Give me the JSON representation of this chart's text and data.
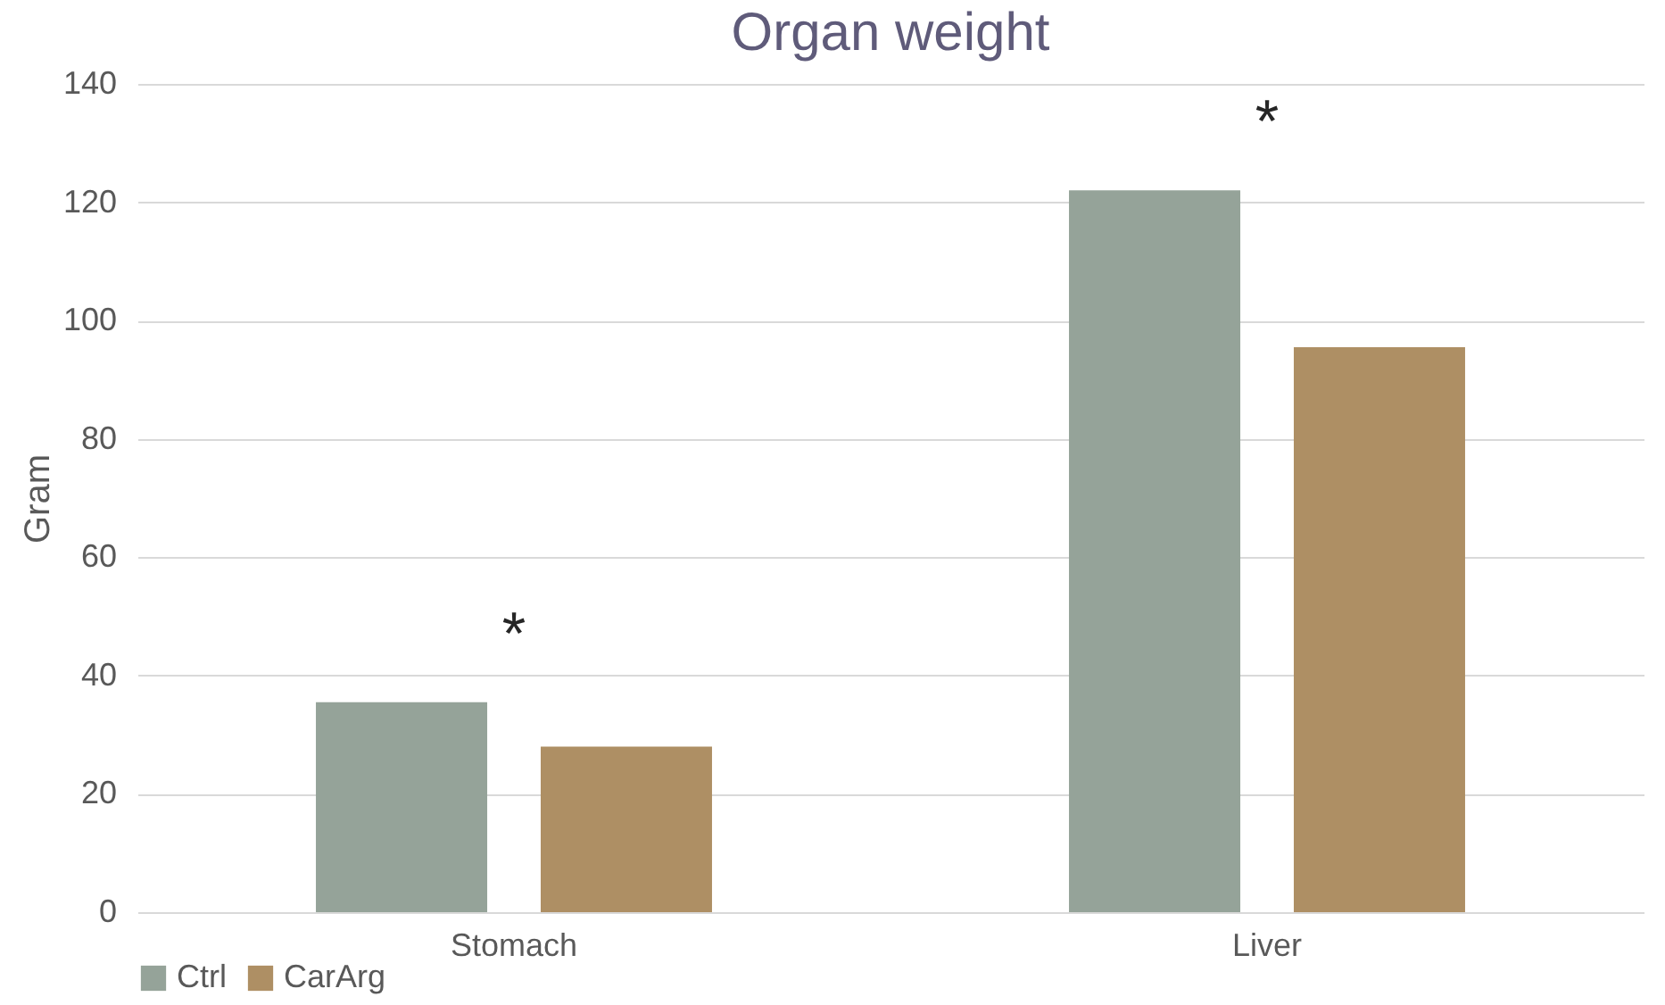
{
  "chart_data": {
    "type": "bar",
    "title": "Organ weight",
    "ylabel": "Gram",
    "categories": [
      "Stomach",
      "Liver"
    ],
    "series": [
      {
        "name": "Ctrl",
        "color": "#95a399",
        "values": [
          35.5,
          122
        ]
      },
      {
        "name": "CarArg",
        "color": "#ae8f64",
        "values": [
          28,
          95.5
        ]
      }
    ],
    "ylim": [
      0,
      140
    ],
    "yticks": [
      0,
      20,
      40,
      60,
      80,
      100,
      120,
      140
    ],
    "grid": "y",
    "legend": "bottom",
    "annotations": [
      "*",
      "*"
    ]
  }
}
